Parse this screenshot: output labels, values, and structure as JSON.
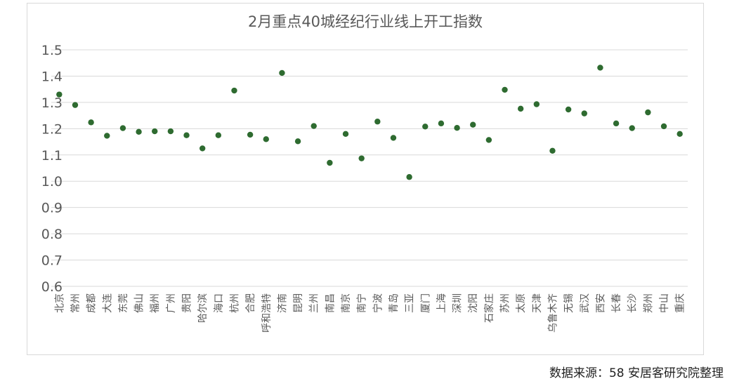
{
  "chart_data": {
    "type": "scatter",
    "title": "2月重点40城经纪行业线上开工指数",
    "xlabel": "",
    "ylabel": "",
    "ylim": [
      0.6,
      1.5
    ],
    "yticks": [
      "0.6",
      "0.7",
      "0.8",
      "0.9",
      "1.0",
      "1.1",
      "1.2",
      "1.3",
      "1.4",
      "1.5"
    ],
    "grid": true,
    "legend": "none",
    "marker_color": "#2e6b30",
    "categories": [
      "北京",
      "常州",
      "成都",
      "大连",
      "东莞",
      "佛山",
      "福州",
      "广州",
      "贵阳",
      "哈尔滨",
      "海口",
      "杭州",
      "合肥",
      "呼和浩特",
      "济南",
      "昆明",
      "兰州",
      "南昌",
      "南京",
      "南宁",
      "宁波",
      "青岛",
      "三亚",
      "厦门",
      "上海",
      "深圳",
      "沈阳",
      "石家庄",
      "苏州",
      "太原",
      "天津",
      "乌鲁木齐",
      "无锡",
      "武汉",
      "西安",
      "长春",
      "长沙",
      "郑州",
      "中山",
      "重庆"
    ],
    "values": [
      1.33,
      1.29,
      1.224,
      1.173,
      1.202,
      1.188,
      1.19,
      1.19,
      1.175,
      1.125,
      1.175,
      1.345,
      1.177,
      1.16,
      1.412,
      1.152,
      1.21,
      1.07,
      1.18,
      1.087,
      1.227,
      1.165,
      1.016,
      1.208,
      1.22,
      1.203,
      1.215,
      1.157,
      1.348,
      1.276,
      1.293,
      1.116,
      1.273,
      1.258,
      1.432,
      1.22,
      1.202,
      1.262,
      1.209,
      1.18
    ]
  },
  "source_note": "数据来源：58 安居客研究院整理"
}
